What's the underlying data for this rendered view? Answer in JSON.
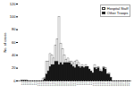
{
  "chart_data": {
    "type": "bar",
    "categories": [
      "3/1",
      "3/2",
      "3/3",
      "3/4",
      "3/5",
      "3/6",
      "3/7",
      "3/8",
      "3/9",
      "3/10",
      "3/11",
      "3/12",
      "3/13",
      "3/14",
      "3/15",
      "3/16",
      "3/17",
      "3/18",
      "3/19",
      "3/20",
      "3/21",
      "3/22",
      "3/23",
      "3/24",
      "3/25",
      "3/26",
      "3/27",
      "3/28",
      "3/29",
      "3/30",
      "3/31",
      "4/1",
      "4/2",
      "4/3",
      "4/4",
      "4/5",
      "4/6",
      "4/7",
      "4/8",
      "4/9",
      "4/10",
      "4/11",
      "4/12",
      "4/13",
      "4/14",
      "4/15",
      "4/16",
      "4/17",
      "4/18",
      "4/19",
      "4/20",
      "4/21",
      "4/22",
      "4/23",
      "4/24",
      "4/25",
      "4/26",
      "4/27",
      "4/28",
      "4/29",
      "4/30"
    ],
    "series": [
      {
        "name": "Hospital Staff",
        "color": "white",
        "values": [
          1,
          1,
          1,
          1,
          0,
          0,
          0,
          0,
          0,
          0,
          0,
          0,
          3,
          5,
          30,
          30,
          42,
          40,
          35,
          55,
          65,
          100,
          58,
          50,
          40,
          33,
          35,
          30,
          30,
          27,
          30,
          32,
          28,
          22,
          25,
          20,
          25,
          22,
          15,
          8,
          12,
          25,
          20,
          22,
          18,
          15,
          22,
          20,
          10,
          12,
          5,
          0,
          0,
          0,
          0,
          0,
          0,
          0,
          0,
          0,
          0
        ]
      },
      {
        "name": "Other Troops",
        "color": "#111111",
        "values": [
          0,
          0,
          0,
          0,
          0,
          0,
          0,
          0,
          0,
          0,
          0,
          0,
          0,
          3,
          10,
          15,
          22,
          25,
          25,
          30,
          30,
          25,
          28,
          25,
          28,
          28,
          28,
          28,
          25,
          22,
          20,
          25,
          22,
          20,
          22,
          20,
          22,
          22,
          18,
          15,
          12,
          20,
          18,
          20,
          15,
          14,
          20,
          18,
          10,
          10,
          5,
          0,
          0,
          0,
          0,
          0,
          0,
          0,
          0,
          0,
          0
        ]
      }
    ],
    "ylabel": "No. of cases",
    "ylim": [
      0,
      120
    ],
    "yticks": [
      0,
      20,
      40,
      60,
      80,
      100,
      120
    ],
    "stacked": false,
    "grid": false,
    "legend": "upper right"
  }
}
